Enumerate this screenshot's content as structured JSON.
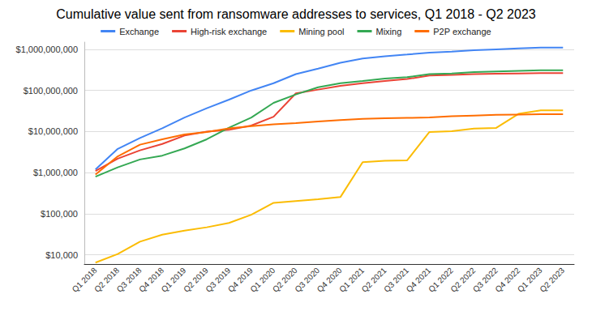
{
  "chart_data": {
    "type": "line",
    "title": "Cumulative value sent from ransomware addresses to services, Q1 2018 - Q2 2023",
    "categories": [
      "Q1 2018",
      "Q2 2018",
      "Q3 2018",
      "Q4 2018",
      "Q1 2019",
      "Q2 2019",
      "Q3 2019",
      "Q4 2019",
      "Q1 2020",
      "Q2 2020",
      "Q3 2020",
      "Q4 2020",
      "Q1 2021",
      "Q2 2021",
      "Q3 2021",
      "Q4 2021",
      "Q1 2022",
      "Q2 2022",
      "Q3 2022",
      "Q4 2022",
      "Q1 2023",
      "Q2 2023"
    ],
    "series": [
      {
        "name": "Exchange",
        "color": "#4285f4",
        "values": [
          1200000,
          3800000,
          7000000,
          12000000,
          22000000,
          37000000,
          60000000,
          100000000,
          150000000,
          250000000,
          340000000,
          470000000,
          600000000,
          680000000,
          750000000,
          830000000,
          880000000,
          950000000,
          1000000000,
          1050000000,
          1100000000,
          1100000000
        ]
      },
      {
        "name": "High-risk exchange",
        "color": "#ea4335",
        "values": [
          1100000,
          2200000,
          3500000,
          5000000,
          8000000,
          10000000,
          11000000,
          14000000,
          23000000,
          85000000,
          105000000,
          130000000,
          150000000,
          170000000,
          190000000,
          230000000,
          240000000,
          250000000,
          255000000,
          260000000,
          265000000,
          265000000
        ]
      },
      {
        "name": "Mining pool",
        "color": "#fbbc04",
        "values": [
          6500,
          10500,
          21000,
          31000,
          39000,
          47000,
          60000,
          95000,
          185000,
          205000,
          225000,
          255000,
          1800000,
          1950000,
          2000000,
          9800000,
          10200000,
          11800000,
          12300000,
          27000000,
          33000000,
          33000000
        ]
      },
      {
        "name": "Mixing",
        "color": "#34a853",
        "values": [
          800000,
          1350000,
          2100000,
          2600000,
          3900000,
          6500000,
          12500000,
          22000000,
          50000000,
          80000000,
          120000000,
          150000000,
          170000000,
          195000000,
          210000000,
          250000000,
          260000000,
          280000000,
          290000000,
          300000000,
          310000000,
          310000000
        ]
      },
      {
        "name": "P2P exchange",
        "color": "#ff6d01",
        "values": [
          900000,
          2500000,
          4800000,
          6500000,
          8500000,
          9800000,
          12000000,
          13500000,
          15000000,
          16000000,
          17500000,
          19000000,
          20500000,
          21000000,
          21500000,
          22000000,
          23500000,
          24500000,
          25500000,
          26000000,
          26500000,
          26500000
        ]
      }
    ],
    "ylim": [
      6000,
      1500000000
    ],
    "yticks": [
      {
        "value": 10000,
        "label": "$10,000"
      },
      {
        "value": 100000,
        "label": "$100,000"
      },
      {
        "value": 1000000,
        "label": "$1,000,000"
      },
      {
        "value": 10000000,
        "label": "$10,000,000"
      },
      {
        "value": 100000000,
        "label": "$100,000,000"
      },
      {
        "value": 1000000000,
        "label": "$1,000,000,000"
      }
    ],
    "log": "y",
    "grid": true,
    "legend": "top"
  }
}
